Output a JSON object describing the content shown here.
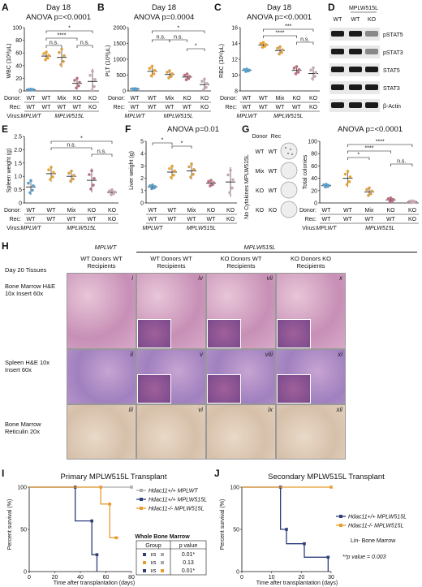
{
  "letters": [
    "A",
    "B",
    "C",
    "D",
    "E",
    "F",
    "G",
    "H",
    "I",
    "J"
  ],
  "A": {
    "title": "Day 18",
    "anova": "ANOVA p=<0.0001",
    "ylabel": "WBC (10³/μL)",
    "ticks": [
      "0",
      "20",
      "40",
      "60",
      "80",
      "100"
    ],
    "sig": [
      "*",
      "****",
      "n.s.",
      "n.s."
    ],
    "donor": [
      "WT",
      "WT",
      "Mix",
      "KO",
      "KO"
    ],
    "rec": [
      "WT",
      "WT",
      "WT",
      "WT",
      "KO"
    ]
  },
  "B": {
    "title": "Day 18",
    "anova": "ANOVA p=0.0004",
    "ylabel": "PLT (10³/μL)",
    "ticks": [
      "0",
      "500",
      "1000",
      "1500",
      "2000"
    ],
    "sig": [
      "*",
      "n.s.",
      "n.s.",
      "*"
    ],
    "donor": [
      "WT",
      "WT",
      "Mix",
      "KO",
      "KO"
    ],
    "rec": [
      "WT",
      "WT",
      "WT",
      "WT",
      "KO"
    ]
  },
  "C": {
    "title": "Day 18",
    "anova": "ANOVA p=<0.0001",
    "ylabel": "RBC (10⁶/μL)",
    "ticks": [
      "8",
      "10",
      "12",
      "14",
      "16"
    ],
    "sig": [
      "***",
      "****",
      "n.s."
    ],
    "donor": [
      "WT",
      "WT",
      "Mix",
      "KO",
      "KO"
    ],
    "rec": [
      "WT",
      "WT",
      "WT",
      "WT",
      "KO"
    ]
  },
  "D": {
    "header": "MPLW515L",
    "lanes": [
      "WT",
      "WT",
      "KO"
    ],
    "bands": [
      "pSTAT5",
      "pSTAT3",
      "STAT5",
      "STAT3",
      "β-Actin"
    ]
  },
  "E": {
    "ylabel": "Spleen weight (g)",
    "ticks": [
      "0",
      "0.5",
      "1.0",
      "1.5",
      "2.0",
      "2.5"
    ],
    "sig": [
      "*",
      "n.s.",
      "n.s."
    ],
    "donor": [
      "WT",
      "WT",
      "Mix",
      "KO",
      "KO"
    ],
    "rec": [
      "WT",
      "WT",
      "WT",
      "WT",
      "KO"
    ]
  },
  "F": {
    "anova": "ANOVA p=0.01",
    "ylabel": "Liver weight (g)",
    "ticks": [
      "0",
      "1",
      "2",
      "3",
      "4",
      "5"
    ],
    "sig": [
      "*",
      "*"
    ],
    "donor": [
      "WT",
      "WT",
      "Mix",
      "KO",
      "KO"
    ],
    "rec": [
      "WT",
      "WT",
      "WT",
      "WT",
      "KO"
    ]
  },
  "G": {
    "anova": "ANOVA p=<0.0001",
    "ylabel": "Total colonies",
    "ticks": [
      "0",
      "20",
      "40",
      "60",
      "80",
      "100"
    ],
    "sig": [
      "****",
      "****",
      "*",
      "n.s."
    ],
    "donor": [
      "WT",
      "WT",
      "Mix",
      "KO",
      "KO"
    ],
    "rec": [
      "WT",
      "WT",
      "WT",
      "WT",
      "KO"
    ],
    "dish_header_donor": "Donor",
    "dish_header_rec": "Rec",
    "dish_side": "No Cytokines MPLW515L",
    "dish_rows": [
      {
        "d": "WT",
        "r": "WT"
      },
      {
        "d": "Mix",
        "r": "WT"
      },
      {
        "d": "KO",
        "r": "WT"
      },
      {
        "d": "KO",
        "r": "KO"
      }
    ]
  },
  "labels": {
    "donor": "Donor:",
    "rec": "Rec:",
    "virus": "Virus:",
    "mplwt": "MPLWT",
    "mplw515l": "MPLW515L"
  },
  "H": {
    "group_wt": "MPLWT",
    "group_mut": "MPLW515L",
    "cols": [
      "WT Donors WT Recipients",
      "WT Donors WT Recipients",
      "KO Donors WT Recipients",
      "KO Donors KO Recipients"
    ],
    "rows": [
      "Day 20 Tissues",
      "Bone Marrow H&E 10x Insert 60x",
      "Spleen H&E 10x Insert 60x",
      "Bone Marrow Reticulin 20x"
    ],
    "numerals": [
      "i",
      "iv",
      "vii",
      "x",
      "ii",
      "v",
      "viii",
      "xi",
      "iii",
      "vi",
      "ix",
      "xii"
    ]
  },
  "I": {
    "title": "Primary MPLW515L Transplant",
    "ylabel": "Percent survival (%)",
    "xlabel": "Time after transplantation (days)",
    "yticks": [
      "0",
      "50",
      "100"
    ],
    "xticks": [
      "0",
      "20",
      "40",
      "60",
      "80"
    ],
    "legend": [
      "Hdac11+/+ MPLWT",
      "Hdac11+/+ MPLW515L",
      "Hdac11-/- MPLW515L"
    ],
    "box_title": "Whole Bone Marrow",
    "box_cols": [
      "Group",
      "p value"
    ],
    "box_rows": [
      {
        "g": "vs",
        "p": "0.01*"
      },
      {
        "g": "vs",
        "p": "0.13"
      },
      {
        "g": "vs",
        "p": "0.01*"
      }
    ]
  },
  "J": {
    "title": "Secondary MPLW515L Transplant",
    "ylabel": "Percent survival (%)",
    "xlabel": "Time after transplantation (days)",
    "yticks": [
      "0",
      "50",
      "100"
    ],
    "xticks": [
      "0",
      "10",
      "20",
      "30"
    ],
    "legend": [
      "Hdac11+/+ MPLW515L",
      "Hdac11-/- MPLW515L"
    ],
    "note": "Lin- Bone Marrow",
    "pval": "**p value = 0.003"
  },
  "colors": {
    "wt": "#5b9fc8",
    "wtmut": "#e7a434",
    "mix": "#d9a04a",
    "ko": "#b97080",
    "ko2": "#c9a8b0",
    "navy": "#2d3e7a",
    "grey": "#aaaaaa",
    "orange": "#e89c2e"
  },
  "chart_data": [
    {
      "panel": "A",
      "type": "scatter",
      "ylabel": "WBC (10³/μL)",
      "ylim": [
        0,
        100
      ],
      "categories": [
        "WT/WT MPLWT",
        "WT/WT",
        "Mix/WT",
        "KO/WT",
        "KO/KO"
      ],
      "values": [
        2,
        55,
        53,
        12,
        15
      ]
    },
    {
      "panel": "B",
      "type": "scatter",
      "ylabel": "PLT (10³/μL)",
      "ylim": [
        0,
        2000
      ],
      "categories": [
        "WT/WT MPLWT",
        "WT/WT",
        "Mix/WT",
        "KO/WT",
        "KO/KO"
      ],
      "values": [
        60,
        620,
        520,
        440,
        200
      ]
    },
    {
      "panel": "C",
      "type": "scatter",
      "ylabel": "RBC (10⁶/μL)",
      "ylim": [
        8,
        16
      ],
      "categories": [
        "WT/WT MPLWT",
        "WT/WT",
        "Mix/WT",
        "KO/WT",
        "KO/KO"
      ],
      "values": [
        10.6,
        13.8,
        13.1,
        10.6,
        10.2
      ]
    },
    {
      "panel": "E",
      "type": "scatter",
      "ylabel": "Spleen weight (g)",
      "ylim": [
        0,
        2.5
      ],
      "categories": [
        "WT/WT MPLWT",
        "WT/WT",
        "Mix/WT",
        "KO/WT",
        "KO/KO"
      ],
      "values": [
        0.6,
        1.1,
        1.0,
        0.85,
        0.4
      ]
    },
    {
      "panel": "F",
      "type": "scatter",
      "ylabel": "Liver weight (g)",
      "ylim": [
        0,
        5
      ],
      "categories": [
        "WT/WT MPLWT",
        "WT/WT",
        "Mix/WT",
        "KO/WT",
        "KO/KO"
      ],
      "values": [
        1.3,
        2.5,
        2.6,
        1.6,
        1.7
      ]
    },
    {
      "panel": "G",
      "type": "scatter",
      "ylabel": "Total colonies",
      "ylim": [
        0,
        100
      ],
      "categories": [
        "WT/WT MPLWT",
        "WT/WT",
        "Mix/WT",
        "KO/WT",
        "KO/KO"
      ],
      "values": [
        28,
        40,
        18,
        5,
        2
      ]
    },
    {
      "panel": "I",
      "type": "line",
      "title": "Primary MPLW515L Transplant",
      "ylim": [
        0,
        100
      ],
      "xlim": [
        0,
        80
      ],
      "series": [
        {
          "name": "Hdac11+/+ MPLWT",
          "x": [
            0,
            80
          ],
          "y": [
            100,
            100
          ]
        },
        {
          "name": "Hdac11+/+ MPLW515L",
          "x": [
            0,
            36,
            49,
            53
          ],
          "y": [
            100,
            60,
            20,
            0
          ]
        },
        {
          "name": "Hdac11-/- MPLW515L",
          "x": [
            0,
            56,
            63,
            68
          ],
          "y": [
            100,
            80,
            40,
            40
          ]
        }
      ]
    },
    {
      "panel": "J",
      "type": "line",
      "title": "Secondary MPLW515L Transplant",
      "ylim": [
        0,
        100
      ],
      "xlim": [
        0,
        30
      ],
      "series": [
        {
          "name": "Hdac11+/+ MPLW515L",
          "x": [
            0,
            13,
            15,
            21,
            29
          ],
          "y": [
            100,
            50,
            33,
            17,
            0
          ]
        },
        {
          "name": "Hdac11-/- MPLW515L",
          "x": [
            0,
            30
          ],
          "y": [
            100,
            100
          ]
        }
      ]
    }
  ]
}
